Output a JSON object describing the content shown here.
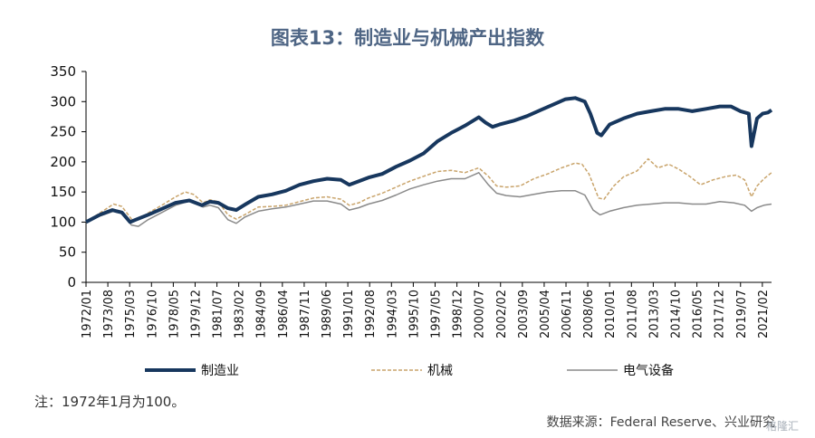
{
  "title": "图表13：制造业与机械产出指数",
  "note": "注：1972年1月为100。",
  "source": "数据来源：Federal Reserve、兴业研究",
  "watermark": "格隆汇",
  "chart_data": {
    "type": "line",
    "title": "图表13：制造业与机械产出指数",
    "ylim": [
      0,
      350
    ],
    "yticks": [
      0,
      50,
      100,
      150,
      200,
      250,
      300,
      350
    ],
    "xlim": [
      1972.0,
      2021.75
    ],
    "xtick_labels": [
      "1972/01",
      "1973/08",
      "1975/03",
      "1976/10",
      "1978/05",
      "1979/12",
      "1981/07",
      "1983/02",
      "1984/09",
      "1986/04",
      "1987/11",
      "1989/06",
      "1991/01",
      "1992/08",
      "1994/03",
      "1995/10",
      "1997/05",
      "1998/12",
      "2000/07",
      "2002/02",
      "2003/09",
      "2005/04",
      "2006/11",
      "2008/06",
      "2010/01",
      "2011/08",
      "2013/03",
      "2014/10",
      "2016/05",
      "2017/12",
      "2019/07",
      "2021/02"
    ],
    "legend_position": "bottom",
    "series": [
      {
        "name": "制造业",
        "color": "#17375e",
        "style": "solid",
        "width": 4,
        "points": [
          [
            1972.0,
            100
          ],
          [
            1973.0,
            112
          ],
          [
            1973.9,
            120
          ],
          [
            1974.6,
            116
          ],
          [
            1975.2,
            100
          ],
          [
            1975.6,
            104
          ],
          [
            1976.5,
            112
          ],
          [
            1977.5,
            122
          ],
          [
            1978.5,
            132
          ],
          [
            1979.5,
            136
          ],
          [
            1980.4,
            128
          ],
          [
            1981.0,
            134
          ],
          [
            1981.6,
            132
          ],
          [
            1982.3,
            123
          ],
          [
            1982.9,
            120
          ],
          [
            1983.6,
            130
          ],
          [
            1984.5,
            142
          ],
          [
            1985.5,
            146
          ],
          [
            1986.5,
            152
          ],
          [
            1987.5,
            162
          ],
          [
            1988.5,
            168
          ],
          [
            1989.5,
            172
          ],
          [
            1990.5,
            170
          ],
          [
            1991.1,
            162
          ],
          [
            1991.8,
            168
          ],
          [
            1992.5,
            174
          ],
          [
            1993.5,
            180
          ],
          [
            1994.5,
            192
          ],
          [
            1995.5,
            202
          ],
          [
            1996.5,
            214
          ],
          [
            1997.5,
            234
          ],
          [
            1998.5,
            248
          ],
          [
            1999.5,
            260
          ],
          [
            2000.5,
            274
          ],
          [
            2001.0,
            265
          ],
          [
            2001.5,
            258
          ],
          [
            2002.0,
            262
          ],
          [
            2003.0,
            268
          ],
          [
            2004.0,
            276
          ],
          [
            2005.0,
            286
          ],
          [
            2006.0,
            296
          ],
          [
            2006.8,
            304
          ],
          [
            2007.5,
            306
          ],
          [
            2008.2,
            300
          ],
          [
            2008.6,
            280
          ],
          [
            2009.1,
            248
          ],
          [
            2009.4,
            244
          ],
          [
            2010.0,
            262
          ],
          [
            2011.0,
            272
          ],
          [
            2012.0,
            280
          ],
          [
            2013.0,
            284
          ],
          [
            2014.0,
            288
          ],
          [
            2015.0,
            288
          ],
          [
            2016.0,
            284
          ],
          [
            2017.0,
            288
          ],
          [
            2018.0,
            292
          ],
          [
            2018.8,
            292
          ],
          [
            2019.5,
            284
          ],
          [
            2020.1,
            280
          ],
          [
            2020.3,
            226
          ],
          [
            2020.7,
            272
          ],
          [
            2021.1,
            280
          ],
          [
            2021.5,
            282
          ],
          [
            2021.75,
            286
          ]
        ]
      },
      {
        "name": "机械",
        "color": "#c9a46b",
        "style": "dashed",
        "width": 1.5,
        "points": [
          [
            1972.0,
            100
          ],
          [
            1973.0,
            115
          ],
          [
            1974.0,
            130
          ],
          [
            1974.6,
            126
          ],
          [
            1975.3,
            105
          ],
          [
            1975.8,
            103
          ],
          [
            1976.5,
            115
          ],
          [
            1977.5,
            128
          ],
          [
            1978.5,
            142
          ],
          [
            1979.2,
            150
          ],
          [
            1979.8,
            146
          ],
          [
            1980.5,
            132
          ],
          [
            1981.0,
            137
          ],
          [
            1981.6,
            134
          ],
          [
            1982.3,
            112
          ],
          [
            1982.9,
            105
          ],
          [
            1983.5,
            112
          ],
          [
            1984.5,
            125
          ],
          [
            1985.5,
            126
          ],
          [
            1986.5,
            128
          ],
          [
            1987.5,
            134
          ],
          [
            1988.5,
            140
          ],
          [
            1989.5,
            142
          ],
          [
            1990.5,
            138
          ],
          [
            1991.1,
            128
          ],
          [
            1991.8,
            132
          ],
          [
            1992.5,
            140
          ],
          [
            1993.5,
            148
          ],
          [
            1994.5,
            158
          ],
          [
            1995.5,
            168
          ],
          [
            1996.5,
            176
          ],
          [
            1997.5,
            184
          ],
          [
            1998.5,
            186
          ],
          [
            1999.5,
            182
          ],
          [
            2000.5,
            190
          ],
          [
            2001.2,
            176
          ],
          [
            2001.8,
            160
          ],
          [
            2002.5,
            158
          ],
          [
            2003.5,
            160
          ],
          [
            2004.5,
            172
          ],
          [
            2005.5,
            180
          ],
          [
            2006.5,
            190
          ],
          [
            2007.5,
            198
          ],
          [
            2008.0,
            196
          ],
          [
            2008.5,
            180
          ],
          [
            2009.2,
            140
          ],
          [
            2009.6,
            138
          ],
          [
            2010.3,
            160
          ],
          [
            2011.0,
            175
          ],
          [
            2012.0,
            185
          ],
          [
            2012.8,
            205
          ],
          [
            2013.5,
            190
          ],
          [
            2014.3,
            196
          ],
          [
            2015.0,
            188
          ],
          [
            2015.8,
            176
          ],
          [
            2016.6,
            162
          ],
          [
            2017.5,
            170
          ],
          [
            2018.5,
            176
          ],
          [
            2019.2,
            178
          ],
          [
            2019.8,
            170
          ],
          [
            2020.3,
            142
          ],
          [
            2020.7,
            160
          ],
          [
            2021.2,
            172
          ],
          [
            2021.75,
            182
          ]
        ]
      },
      {
        "name": "电气设备",
        "color": "#8a8a8a",
        "style": "solid",
        "width": 1.5,
        "points": [
          [
            1972.0,
            100
          ],
          [
            1973.0,
            110
          ],
          [
            1974.0,
            118
          ],
          [
            1974.6,
            115
          ],
          [
            1975.3,
            95
          ],
          [
            1975.8,
            93
          ],
          [
            1976.5,
            104
          ],
          [
            1977.5,
            116
          ],
          [
            1978.5,
            128
          ],
          [
            1979.5,
            135
          ],
          [
            1980.5,
            125
          ],
          [
            1981.0,
            128
          ],
          [
            1981.6,
            124
          ],
          [
            1982.3,
            104
          ],
          [
            1982.9,
            98
          ],
          [
            1983.5,
            108
          ],
          [
            1984.5,
            118
          ],
          [
            1985.5,
            122
          ],
          [
            1986.5,
            125
          ],
          [
            1987.5,
            130
          ],
          [
            1988.5,
            135
          ],
          [
            1989.5,
            135
          ],
          [
            1990.5,
            130
          ],
          [
            1991.1,
            120
          ],
          [
            1991.8,
            124
          ],
          [
            1992.5,
            130
          ],
          [
            1993.5,
            136
          ],
          [
            1994.5,
            145
          ],
          [
            1995.5,
            155
          ],
          [
            1996.5,
            162
          ],
          [
            1997.5,
            168
          ],
          [
            1998.5,
            172
          ],
          [
            1999.5,
            172
          ],
          [
            2000.5,
            182
          ],
          [
            2001.2,
            162
          ],
          [
            2001.8,
            148
          ],
          [
            2002.5,
            144
          ],
          [
            2003.5,
            142
          ],
          [
            2004.5,
            146
          ],
          [
            2005.5,
            150
          ],
          [
            2006.5,
            152
          ],
          [
            2007.5,
            152
          ],
          [
            2008.2,
            145
          ],
          [
            2008.8,
            120
          ],
          [
            2009.3,
            112
          ],
          [
            2010.0,
            118
          ],
          [
            2011.0,
            124
          ],
          [
            2012.0,
            128
          ],
          [
            2013.0,
            130
          ],
          [
            2014.0,
            132
          ],
          [
            2015.0,
            132
          ],
          [
            2016.0,
            130
          ],
          [
            2017.0,
            130
          ],
          [
            2018.0,
            134
          ],
          [
            2019.0,
            132
          ],
          [
            2019.8,
            128
          ],
          [
            2020.3,
            118
          ],
          [
            2020.7,
            124
          ],
          [
            2021.2,
            128
          ],
          [
            2021.75,
            130
          ]
        ]
      }
    ]
  }
}
